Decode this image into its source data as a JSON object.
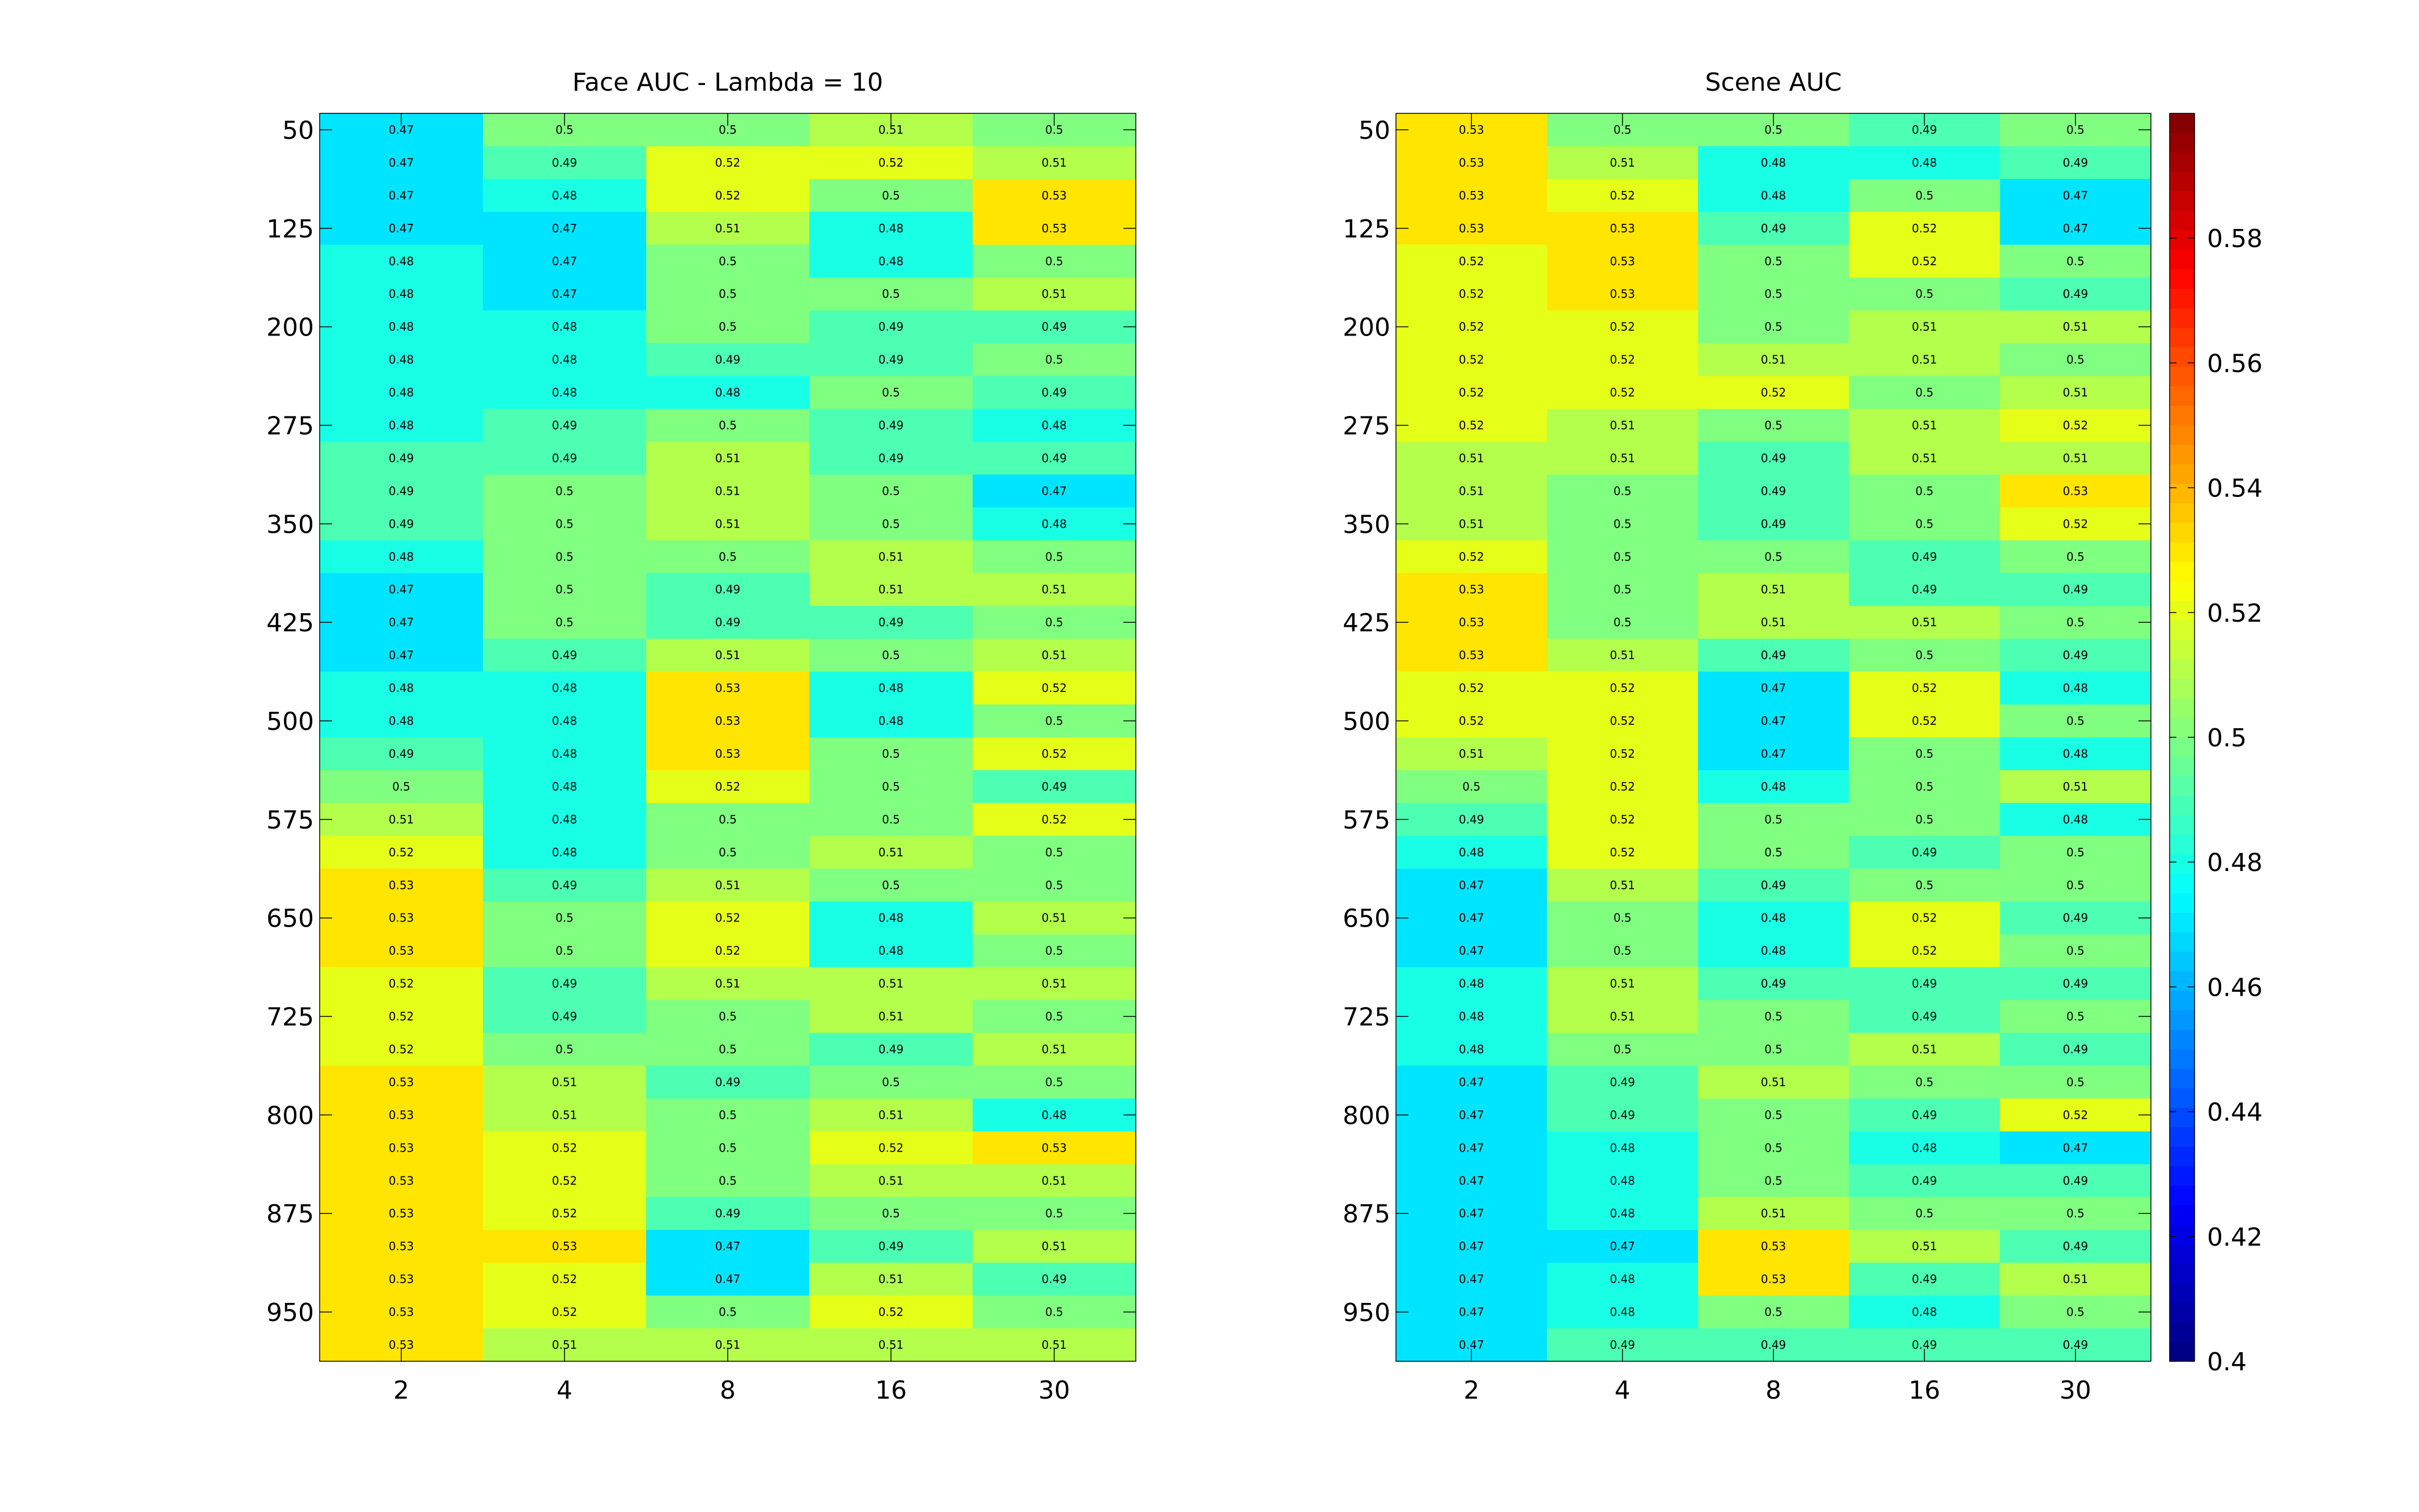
{
  "chart_data": [
    {
      "type": "heatmap",
      "title": "Face AUC - Lambda = 10",
      "xlabel": "",
      "ylabel": "",
      "x": [
        "2",
        "4",
        "8",
        "16",
        "30"
      ],
      "y": [
        50,
        75,
        100,
        125,
        150,
        175,
        200,
        225,
        250,
        275,
        300,
        325,
        350,
        375,
        400,
        425,
        450,
        475,
        500,
        525,
        550,
        575,
        600,
        625,
        650,
        675,
        700,
        725,
        750,
        775,
        800,
        825,
        850,
        875,
        900,
        925,
        950,
        975
      ],
      "ytick_labels": [
        "50",
        "125",
        "200",
        "275",
        "350",
        "425",
        "500",
        "575",
        "650",
        "725",
        "800",
        "875",
        "950"
      ],
      "values": [
        [
          0.47,
          0.5,
          0.5,
          0.51,
          0.5
        ],
        [
          0.47,
          0.49,
          0.52,
          0.52,
          0.51
        ],
        [
          0.47,
          0.48,
          0.52,
          0.5,
          0.53
        ],
        [
          0.47,
          0.47,
          0.51,
          0.48,
          0.53
        ],
        [
          0.48,
          0.47,
          0.5,
          0.48,
          0.5
        ],
        [
          0.48,
          0.47,
          0.5,
          0.5,
          0.51
        ],
        [
          0.48,
          0.48,
          0.5,
          0.49,
          0.49
        ],
        [
          0.48,
          0.48,
          0.49,
          0.49,
          0.5
        ],
        [
          0.48,
          0.48,
          0.48,
          0.5,
          0.49
        ],
        [
          0.48,
          0.49,
          0.5,
          0.49,
          0.48
        ],
        [
          0.49,
          0.49,
          0.51,
          0.49,
          0.49
        ],
        [
          0.49,
          0.5,
          0.51,
          0.5,
          0.47
        ],
        [
          0.49,
          0.5,
          0.51,
          0.5,
          0.48
        ],
        [
          0.48,
          0.5,
          0.5,
          0.51,
          0.5
        ],
        [
          0.47,
          0.5,
          0.49,
          0.51,
          0.51
        ],
        [
          0.47,
          0.5,
          0.49,
          0.49,
          0.5
        ],
        [
          0.47,
          0.49,
          0.51,
          0.5,
          0.51
        ],
        [
          0.48,
          0.48,
          0.53,
          0.48,
          0.52
        ],
        [
          0.48,
          0.48,
          0.53,
          0.48,
          0.5
        ],
        [
          0.49,
          0.48,
          0.53,
          0.5,
          0.52
        ],
        [
          0.5,
          0.48,
          0.52,
          0.5,
          0.49
        ],
        [
          0.51,
          0.48,
          0.5,
          0.5,
          0.52
        ],
        [
          0.52,
          0.48,
          0.5,
          0.51,
          0.5
        ],
        [
          0.53,
          0.49,
          0.51,
          0.5,
          0.5
        ],
        [
          0.53,
          0.5,
          0.52,
          0.48,
          0.51
        ],
        [
          0.53,
          0.5,
          0.52,
          0.48,
          0.5
        ],
        [
          0.52,
          0.49,
          0.51,
          0.51,
          0.51
        ],
        [
          0.52,
          0.49,
          0.5,
          0.51,
          0.5
        ],
        [
          0.52,
          0.5,
          0.5,
          0.49,
          0.51
        ],
        [
          0.53,
          0.51,
          0.49,
          0.5,
          0.5
        ],
        [
          0.53,
          0.51,
          0.5,
          0.51,
          0.48
        ],
        [
          0.53,
          0.52,
          0.5,
          0.52,
          0.53
        ],
        [
          0.53,
          0.52,
          0.5,
          0.51,
          0.51
        ],
        [
          0.53,
          0.52,
          0.49,
          0.5,
          0.5
        ],
        [
          0.53,
          0.53,
          0.47,
          0.49,
          0.51
        ],
        [
          0.53,
          0.52,
          0.47,
          0.51,
          0.49
        ],
        [
          0.53,
          0.52,
          0.5,
          0.52,
          0.5
        ],
        [
          0.53,
          0.51,
          0.51,
          0.51,
          0.51
        ]
      ],
      "colormap": "jet",
      "clim": [
        0.4,
        0.6
      ]
    },
    {
      "type": "heatmap",
      "title": "Scene AUC",
      "xlabel": "",
      "ylabel": "",
      "x": [
        "2",
        "4",
        "8",
        "16",
        "30"
      ],
      "y": [
        50,
        75,
        100,
        125,
        150,
        175,
        200,
        225,
        250,
        275,
        300,
        325,
        350,
        375,
        400,
        425,
        450,
        475,
        500,
        525,
        550,
        575,
        600,
        625,
        650,
        675,
        700,
        725,
        750,
        775,
        800,
        825,
        850,
        875,
        900,
        925,
        950,
        975
      ],
      "ytick_labels": [
        "50",
        "125",
        "200",
        "275",
        "350",
        "425",
        "500",
        "575",
        "650",
        "725",
        "800",
        "875",
        "950"
      ],
      "values": [
        [
          0.53,
          0.5,
          0.5,
          0.49,
          0.5
        ],
        [
          0.53,
          0.51,
          0.48,
          0.48,
          0.49
        ],
        [
          0.53,
          0.52,
          0.48,
          0.5,
          0.47
        ],
        [
          0.53,
          0.53,
          0.49,
          0.52,
          0.47
        ],
        [
          0.52,
          0.53,
          0.5,
          0.52,
          0.5
        ],
        [
          0.52,
          0.53,
          0.5,
          0.5,
          0.49
        ],
        [
          0.52,
          0.52,
          0.5,
          0.51,
          0.51
        ],
        [
          0.52,
          0.52,
          0.51,
          0.51,
          0.5
        ],
        [
          0.52,
          0.52,
          0.52,
          0.5,
          0.51
        ],
        [
          0.52,
          0.51,
          0.5,
          0.51,
          0.52
        ],
        [
          0.51,
          0.51,
          0.49,
          0.51,
          0.51
        ],
        [
          0.51,
          0.5,
          0.49,
          0.5,
          0.53
        ],
        [
          0.51,
          0.5,
          0.49,
          0.5,
          0.52
        ],
        [
          0.52,
          0.5,
          0.5,
          0.49,
          0.5
        ],
        [
          0.53,
          0.5,
          0.51,
          0.49,
          0.49
        ],
        [
          0.53,
          0.5,
          0.51,
          0.51,
          0.5
        ],
        [
          0.53,
          0.51,
          0.49,
          0.5,
          0.49
        ],
        [
          0.52,
          0.52,
          0.47,
          0.52,
          0.48
        ],
        [
          0.52,
          0.52,
          0.47,
          0.52,
          0.5
        ],
        [
          0.51,
          0.52,
          0.47,
          0.5,
          0.48
        ],
        [
          0.5,
          0.52,
          0.48,
          0.5,
          0.51
        ],
        [
          0.49,
          0.52,
          0.5,
          0.5,
          0.48
        ],
        [
          0.48,
          0.52,
          0.5,
          0.49,
          0.5
        ],
        [
          0.47,
          0.51,
          0.49,
          0.5,
          0.5
        ],
        [
          0.47,
          0.5,
          0.48,
          0.52,
          0.49
        ],
        [
          0.47,
          0.5,
          0.48,
          0.52,
          0.5
        ],
        [
          0.48,
          0.51,
          0.49,
          0.49,
          0.49
        ],
        [
          0.48,
          0.51,
          0.5,
          0.49,
          0.5
        ],
        [
          0.48,
          0.5,
          0.5,
          0.51,
          0.49
        ],
        [
          0.47,
          0.49,
          0.51,
          0.5,
          0.5
        ],
        [
          0.47,
          0.49,
          0.5,
          0.49,
          0.52
        ],
        [
          0.47,
          0.48,
          0.5,
          0.48,
          0.47
        ],
        [
          0.47,
          0.48,
          0.5,
          0.49,
          0.49
        ],
        [
          0.47,
          0.48,
          0.51,
          0.5,
          0.5
        ],
        [
          0.47,
          0.47,
          0.53,
          0.51,
          0.49
        ],
        [
          0.47,
          0.48,
          0.53,
          0.49,
          0.51
        ],
        [
          0.47,
          0.48,
          0.5,
          0.48,
          0.5
        ],
        [
          0.47,
          0.49,
          0.49,
          0.49,
          0.49
        ]
      ],
      "colormap": "jet",
      "clim": [
        0.4,
        0.6
      ],
      "colorbar": {
        "ticks": [
          0.4,
          0.42,
          0.44,
          0.46,
          0.48,
          0.5,
          0.52,
          0.54,
          0.56,
          0.58
        ],
        "tick_labels": [
          "0.4",
          "0.42",
          "0.44",
          "0.46",
          "0.48",
          "0.5",
          "0.52",
          "0.54",
          "0.56",
          "0.58"
        ]
      }
    }
  ]
}
